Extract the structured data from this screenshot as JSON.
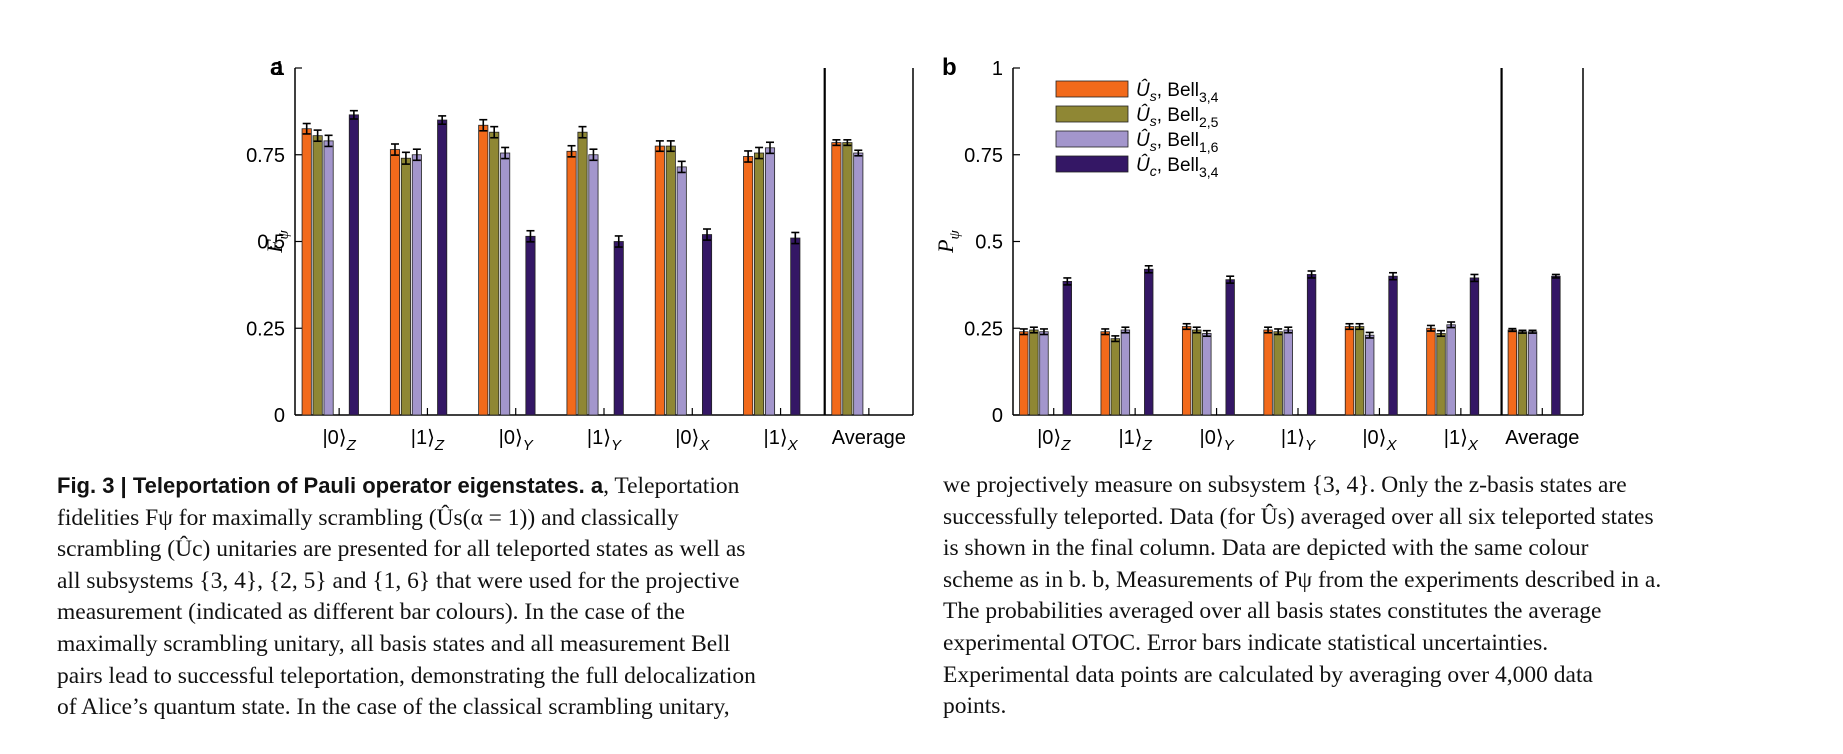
{
  "colors": {
    "Us_bell34": "#f26a1b",
    "Us_bell25": "#8f8734",
    "Us_bell16": "#a396cc",
    "Uc_bell34": "#341765"
  },
  "chart_data": [
    {
      "type": "bar",
      "panel_label": "a",
      "ylabel": "F_ψ",
      "ylim": [
        0,
        1
      ],
      "yticks": [
        "0",
        "0.25",
        "0.5",
        "0.75",
        "1"
      ],
      "categories": [
        "|0⟩Z",
        "|1⟩Z",
        "|0⟩Y",
        "|1⟩Y",
        "|0⟩X",
        "|1⟩X",
        "Average"
      ],
      "series": [
        {
          "name": "Ûs, Bell3,4",
          "color_key": "Us_bell34",
          "values": [
            0.825,
            0.765,
            0.835,
            0.76,
            0.775,
            0.745,
            0.785
          ],
          "errors": [
            0.015,
            0.016,
            0.016,
            0.016,
            0.015,
            0.016,
            0.008
          ]
        },
        {
          "name": "Ûs, Bell2,5",
          "color_key": "Us_bell25",
          "values": [
            0.805,
            0.74,
            0.815,
            0.815,
            0.775,
            0.755,
            0.785
          ],
          "errors": [
            0.016,
            0.017,
            0.016,
            0.016,
            0.015,
            0.016,
            0.008
          ]
        },
        {
          "name": "Ûs, Bell1,6",
          "color_key": "Us_bell16",
          "values": [
            0.79,
            0.75,
            0.755,
            0.75,
            0.715,
            0.77,
            0.755
          ],
          "errors": [
            0.016,
            0.016,
            0.016,
            0.016,
            0.016,
            0.016,
            0.008
          ]
        },
        {
          "name": "Ûc, Bell3,4",
          "color_key": "Uc_bell34",
          "values": [
            0.865,
            0.85,
            0.515,
            0.5,
            0.52,
            0.51,
            null
          ],
          "errors": [
            0.012,
            0.012,
            0.016,
            0.016,
            0.016,
            0.016,
            null
          ]
        }
      ],
      "grid": false,
      "legend": "none"
    },
    {
      "type": "bar",
      "panel_label": "b",
      "ylabel": "P_ψ",
      "ylim": [
        0,
        1
      ],
      "yticks": [
        "0",
        "0.25",
        "0.5",
        "0.75",
        "1"
      ],
      "categories": [
        "|0⟩Z",
        "|1⟩Z",
        "|0⟩Y",
        "|1⟩Y",
        "|0⟩X",
        "|1⟩X",
        "Average"
      ],
      "series": [
        {
          "name": "Ûs, Bell3,4",
          "color_key": "Us_bell34",
          "values": [
            0.24,
            0.24,
            0.255,
            0.245,
            0.255,
            0.25,
            0.245
          ],
          "errors": [
            0.008,
            0.008,
            0.008,
            0.008,
            0.008,
            0.008,
            0.004
          ]
        },
        {
          "name": "Ûs, Bell2,5",
          "color_key": "Us_bell25",
          "values": [
            0.245,
            0.22,
            0.245,
            0.24,
            0.255,
            0.235,
            0.24
          ],
          "errors": [
            0.008,
            0.008,
            0.008,
            0.008,
            0.008,
            0.008,
            0.004
          ]
        },
        {
          "name": "Ûs, Bell1,6",
          "color_key": "Us_bell16",
          "values": [
            0.24,
            0.245,
            0.235,
            0.245,
            0.23,
            0.26,
            0.24
          ],
          "errors": [
            0.008,
            0.008,
            0.008,
            0.008,
            0.008,
            0.008,
            0.004
          ]
        },
        {
          "name": "Ûc, Bell3,4",
          "color_key": "Uc_bell34",
          "values": [
            0.385,
            0.42,
            0.39,
            0.405,
            0.4,
            0.395,
            0.4
          ],
          "errors": [
            0.01,
            0.01,
            0.01,
            0.01,
            0.01,
            0.01,
            0.005
          ]
        }
      ],
      "grid": false,
      "legend": "top-left"
    }
  ],
  "caption": {
    "left_lines": [
      {
        "bold": "Fig. 3 | Teleportation of Pauli operator eigenstates. a",
        "text": ", Teleportation"
      },
      {
        "bold": "",
        "text": "fidelities Fψ for maximally scrambling (Ûs(α = 1)) and classically"
      },
      {
        "bold": "",
        "text": "scrambling (Ûc) unitaries are presented for all teleported states as well as"
      },
      {
        "bold": "",
        "text": "all subsystems {3, 4}, {2, 5} and {1, 6} that were used for the projective"
      },
      {
        "bold": "",
        "text": "measurement (indicated as different bar colours). In the case of the"
      },
      {
        "bold": "",
        "text": "maximally scrambling unitary, all basis states and all measurement Bell"
      },
      {
        "bold": "",
        "text": "pairs lead to successful teleportation, demonstrating the full delocalization"
      },
      {
        "bold": "",
        "text": "of Alice’s quantum state. In the case of the classical scrambling unitary,"
      }
    ],
    "right_lines": [
      "we projectively measure on subsystem {3, 4}. Only the z-basis states are",
      "successfully teleported. Data (for Ûs) averaged over all six teleported states",
      "is shown in the final column. Data are depicted with the same colour",
      "scheme as in b. b, Measurements of Pψ from the experiments described in a.",
      "The probabilities averaged over all basis states constitutes the average",
      "experimental OTOC. Error bars indicate statistical uncertainties.",
      "Experimental data points are calculated by averaging over 4,000 data",
      "points."
    ]
  }
}
